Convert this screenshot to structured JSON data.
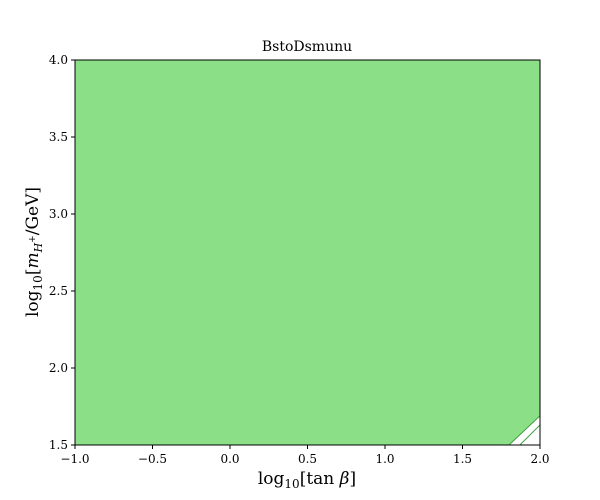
{
  "chart_data": {
    "type": "area",
    "title": "BstoDsmunu",
    "xlabel": "log10[tan β]",
    "ylabel": "log10[m_{H+}/GeV]",
    "xlim": [
      -1.0,
      2.0
    ],
    "ylim": [
      1.5,
      4.0
    ],
    "xticks": [
      "−1.0",
      "−0.5",
      "0.0",
      "0.5",
      "1.0",
      "1.5",
      "2.0"
    ],
    "yticks": [
      "1.5",
      "2.0",
      "2.5",
      "3.0",
      "3.5",
      "4.0"
    ],
    "xtick_values": [
      -1.0,
      -0.5,
      0.0,
      0.5,
      1.0,
      1.5,
      2.0
    ],
    "ytick_values": [
      1.5,
      2.0,
      2.5,
      3.0,
      3.5,
      4.0
    ],
    "grid": false,
    "series": [
      {
        "color": "#8adf87",
        "edge_color": "#3fa33f",
        "boundary": [
          {
            "x": 1.8,
            "y": 1.5
          },
          {
            "x": 2.0,
            "y": 1.69
          }
        ],
        "inner_boundary": [
          {
            "x": 1.87,
            "y": 1.5
          },
          {
            "x": 2.0,
            "y": 1.63
          }
        ]
      }
    ]
  }
}
